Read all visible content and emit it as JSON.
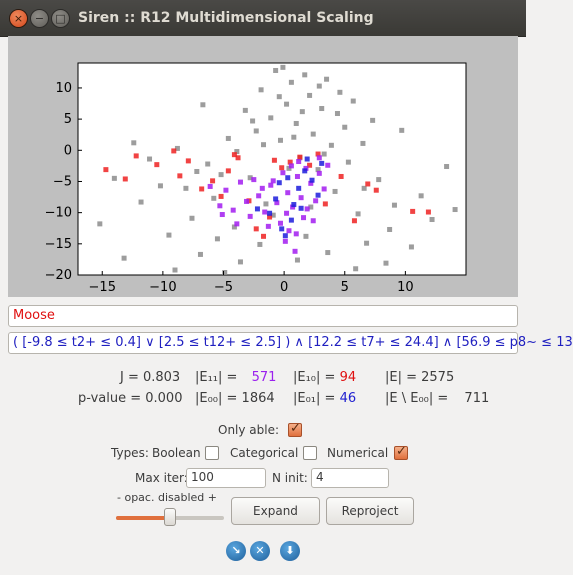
{
  "window": {
    "title": "Siren :: R12 Multidimensional Scaling",
    "close_glyph": "×",
    "min_glyph": "−",
    "max_glyph": "□"
  },
  "chart_data": {
    "type": "scatter",
    "title": "",
    "xlabel": "",
    "ylabel": "",
    "xlim": [
      -17,
      15
    ],
    "ylim": [
      -20,
      14
    ],
    "xticks": [
      "−15",
      "−10",
      "−5",
      "0",
      "5",
      "10"
    ],
    "yticks": [
      "10",
      "5",
      "0",
      "−5",
      "−10",
      "−15",
      "−20"
    ],
    "grid": false,
    "series": [
      {
        "color": "#8c8c8c",
        "points": [
          [
            -15.2,
            -11.8
          ],
          [
            -14,
            -4.5
          ],
          [
            -12.4,
            1.2
          ],
          [
            -11.8,
            -8.3
          ],
          [
            -10.2,
            -5.7
          ],
          [
            -9.5,
            -13.6
          ],
          [
            -8.8,
            0.3
          ],
          [
            -8.1,
            -6.1
          ],
          [
            -7.6,
            -10.9
          ],
          [
            -6.9,
            -16.7
          ],
          [
            -6.3,
            -2.2
          ],
          [
            -5.8,
            -7.7
          ],
          [
            -5.2,
            -3.9
          ],
          [
            -4.6,
            1.9
          ],
          [
            -4.1,
            -12.3
          ],
          [
            -3.6,
            -17.9
          ],
          [
            -3.2,
            6.4
          ],
          [
            -2.8,
            -4.4
          ],
          [
            -2.3,
            3.1
          ],
          [
            -1.9,
            9.7
          ],
          [
            -1.5,
            -8.6
          ],
          [
            -1.1,
            5.2
          ],
          [
            -0.7,
            12.8
          ],
          [
            -0.3,
            1.6
          ],
          [
            0.2,
            7.4
          ],
          [
            0.6,
            10.9
          ],
          [
            1,
            4.3
          ],
          [
            1.3,
            -1.2
          ],
          [
            1.7,
            12.1
          ],
          [
            2.1,
            8.8
          ],
          [
            2.4,
            2.6
          ],
          [
            2.8,
            -3.1
          ],
          [
            3.1,
            6.7
          ],
          [
            3.5,
            11.4
          ],
          [
            3.9,
            0.8
          ],
          [
            4.2,
            -6.6
          ],
          [
            4.6,
            9.3
          ],
          [
            5,
            3.7
          ],
          [
            5.3,
            -1.9
          ],
          [
            5.7,
            7.9
          ],
          [
            6.1,
            -10.2
          ],
          [
            6.5,
            1.1
          ],
          [
            6.8,
            -14.9
          ],
          [
            7.3,
            4.8
          ],
          [
            7.8,
            -4.7
          ],
          [
            8.4,
            -18.1
          ],
          [
            9.1,
            -8.8
          ],
          [
            9.7,
            3.2
          ],
          [
            10.5,
            -15.5
          ],
          [
            11.3,
            -7.3
          ],
          [
            12.2,
            -11.1
          ],
          [
            13.4,
            -2.6
          ],
          [
            14.1,
            -9.5
          ],
          [
            -13.2,
            -17.3
          ],
          [
            -11.1,
            -1.4
          ],
          [
            -9,
            -19.2
          ],
          [
            -7.2,
            -3.4
          ],
          [
            -4.9,
            -19.6
          ],
          [
            -2,
            -15.1
          ],
          [
            1.8,
            -13.8
          ],
          [
            3.6,
            -16.4
          ],
          [
            5.9,
            -19
          ],
          [
            8.7,
            -12.7
          ],
          [
            -0.9,
            -10.4
          ],
          [
            -1.7,
            0.9
          ],
          [
            0.8,
            2.1
          ],
          [
            -0.4,
            8.6
          ],
          [
            2.9,
            10.3
          ],
          [
            4.4,
            5.9
          ],
          [
            1.5,
            6.2
          ],
          [
            -2.6,
            4.7
          ],
          [
            3.3,
            -0.6
          ],
          [
            0.4,
            -2.9
          ],
          [
            -3.9,
            -0.2
          ],
          [
            6.6,
            -6.1
          ],
          [
            2.2,
            -9.1
          ],
          [
            -5.5,
            -14.2
          ],
          [
            -0.1,
            13.3
          ],
          [
            1.1,
            -17.6
          ],
          [
            -6.7,
            7.3
          ]
        ]
      },
      {
        "color": "#ee2222",
        "points": [
          [
            -14.7,
            -3.1
          ],
          [
            -13.1,
            -4.6
          ],
          [
            -12.2,
            -0.9
          ],
          [
            -10.5,
            -2.3
          ],
          [
            -8.6,
            -4.1
          ],
          [
            -7.9,
            -1.7
          ],
          [
            -6.8,
            -6.2
          ],
          [
            -5.9,
            -4.9
          ],
          [
            -5.2,
            -7.4
          ],
          [
            -4.6,
            -3.3
          ],
          [
            -3.8,
            -1.2
          ],
          [
            -2.9,
            -8.1
          ],
          [
            -2.3,
            -12.6
          ],
          [
            -1.7,
            -13.8
          ],
          [
            -0.8,
            -1.6
          ],
          [
            -0.2,
            -2.8
          ],
          [
            0.5,
            -1.9
          ],
          [
            1.3,
            -1.1
          ],
          [
            2.1,
            -2.4
          ],
          [
            3.4,
            -8.6
          ],
          [
            4.7,
            -4.2
          ],
          [
            5.8,
            -11.3
          ],
          [
            7.6,
            -6.4
          ],
          [
            10.6,
            -9.8
          ],
          [
            11.9,
            -9.9
          ],
          [
            -9.1,
            -0.1
          ],
          [
            -4.1,
            -0.7
          ],
          [
            -1.2,
            -10.7
          ],
          [
            2.8,
            -0.6
          ],
          [
            6.9,
            -5.4
          ]
        ]
      },
      {
        "color": "#a21cf0",
        "points": [
          [
            -6.1,
            -5.8
          ],
          [
            -5.3,
            -8.9
          ],
          [
            -4.8,
            -6.4
          ],
          [
            -4.2,
            -9.6
          ],
          [
            -3.6,
            -5.1
          ],
          [
            -3.1,
            -8.2
          ],
          [
            -2.5,
            -4.7
          ],
          [
            -2.1,
            -7.3
          ],
          [
            -1.6,
            -9.9
          ],
          [
            -1.1,
            -5.6
          ],
          [
            -0.6,
            -8.4
          ],
          [
            -0.1,
            -3.6
          ],
          [
            0.3,
            -6.8
          ],
          [
            0.7,
            -9.1
          ],
          [
            1.1,
            -4.2
          ],
          [
            1.4,
            -7.6
          ],
          [
            1.8,
            -2.9
          ],
          [
            2.2,
            -5.3
          ],
          [
            2.6,
            -8.1
          ],
          [
            2.9,
            -3.7
          ],
          [
            3.3,
            -6.2
          ],
          [
            3.6,
            -2.4
          ],
          [
            -0.3,
            -11.7
          ],
          [
            0.4,
            -12.9
          ],
          [
            1,
            -13.4
          ],
          [
            1.6,
            -10.8
          ],
          [
            -1.3,
            -12.2
          ],
          [
            0.1,
            -14.6
          ],
          [
            0.9,
            -16.2
          ],
          [
            2.4,
            -11.3
          ],
          [
            -2.8,
            -10.6
          ],
          [
            -3.9,
            -11.8
          ],
          [
            -5.1,
            -10.3
          ],
          [
            1.2,
            -1.8
          ],
          [
            0.6,
            -2.5
          ],
          [
            2.9,
            -1.2
          ],
          [
            -0.9,
            -4.9
          ],
          [
            1.9,
            -9.4
          ],
          [
            0.2,
            -10.1
          ],
          [
            -1.8,
            -6.1
          ]
        ]
      },
      {
        "color": "#1c1cdc",
        "points": [
          [
            -0.4,
            -5.2
          ],
          [
            0.3,
            -4.4
          ],
          [
            0.8,
            -8.7
          ],
          [
            1.2,
            -6.1
          ],
          [
            1.7,
            -3.3
          ],
          [
            2.3,
            -4.8
          ],
          [
            2.8,
            -7.2
          ],
          [
            -1.2,
            -10.1
          ],
          [
            -0.2,
            -12.6
          ],
          [
            0.6,
            -11.2
          ],
          [
            1.4,
            -9.3
          ],
          [
            -2.2,
            -9.4
          ],
          [
            3.1,
            -2.1
          ],
          [
            1.9,
            -1.4
          ],
          [
            -0.7,
            -7.8
          ],
          [
            0.1,
            -13.7
          ]
        ]
      }
    ]
  },
  "filter": {
    "name": "Moose",
    "query": "( [-9.8 ≤ t2+ ≤ 0.4] ∨ [2.5 ≤ t12+ ≤ 2.5] ) ∧ [12.2 ≤ t7+ ≤ 24.4] ∧ [56.9 ≤ p8~ ≤ 13"
  },
  "stats": {
    "j_label": "J = 0.803",
    "pval_label": "p-value = 0.000",
    "e11_label": "|E₁₁| =",
    "e11_value": "571",
    "e10_label": "|E₁₀| =",
    "e10_value": "94",
    "e_label": "|E| = 2575",
    "e00_label": "|E₀₀| = 1864",
    "e01_label": "|E₀₁| =",
    "e01_value": "46",
    "ediff_label": "|E \\ E₀₀| =",
    "ediff_value": "711"
  },
  "options": {
    "only_able_label": "Only able:",
    "only_able_checked": true,
    "types_label": "Types:",
    "boolean_label": "Boolean",
    "boolean_checked": false,
    "categorical_label": "Categorical",
    "categorical_checked": false,
    "numerical_label": "Numerical",
    "numerical_checked": true,
    "max_iter_label": "Max iter:",
    "max_iter_value": "100",
    "n_init_label": "N init:",
    "n_init_value": "4",
    "opacity_label": "- opac. disabled +",
    "opacity_level": 0.5
  },
  "buttons": {
    "expand": "Expand",
    "reproject": "Reproject"
  },
  "bottom_icons": [
    "arrow-down-right-icon",
    "close-circle-icon",
    "download-icon"
  ]
}
